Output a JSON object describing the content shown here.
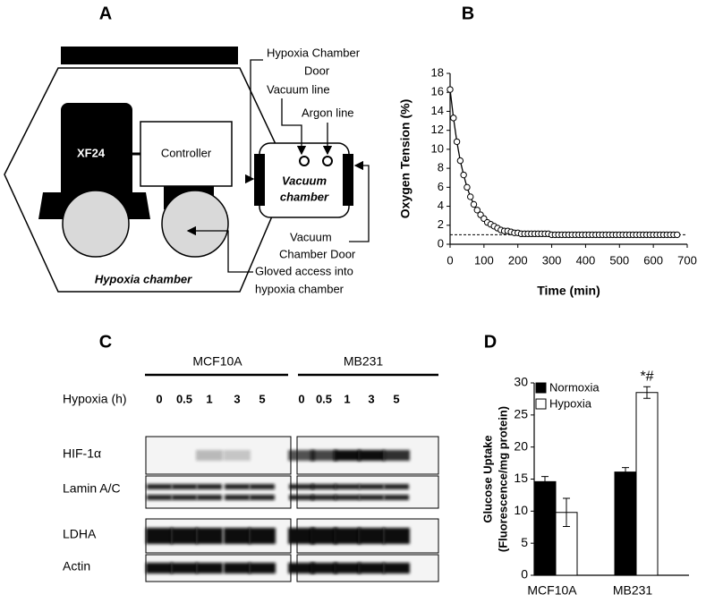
{
  "panel_labels": [
    "A",
    "B",
    "C",
    "D"
  ],
  "diagram": {
    "xf24": "XF24",
    "controller": "Controller",
    "hypoxia_chamber": "Hypoxia  chamber",
    "vacuum_chamber": [
      "Vacuum",
      "chamber"
    ],
    "hypoxia_door": [
      "Hypoxia Chamber",
      "Door"
    ],
    "vacuum_line": "Vacuum line",
    "argon_line": "Argon line",
    "vacuum_door": [
      "Vacuum",
      "Chamber Door"
    ],
    "gloved": [
      "Gloved access into",
      "hypoxia chamber"
    ]
  },
  "blot": {
    "groups": [
      "MCF10A",
      "MB231"
    ],
    "condition_label": "Hypoxia (h)",
    "timepoints": [
      "0",
      "0.5",
      "1",
      "3",
      "5"
    ],
    "rows": [
      "HIF-1α",
      "Lamin A/C",
      "LDHA",
      "Actin"
    ]
  },
  "chart_data": [
    {
      "type": "line",
      "xlabel": "Time (min)",
      "ylabel": "Oxygen Tension (%)",
      "x": [
        0,
        10,
        20,
        30,
        40,
        50,
        60,
        70,
        80,
        90,
        100,
        110,
        120,
        130,
        140,
        150,
        160,
        170,
        180,
        190,
        200,
        210,
        220,
        230,
        240,
        250,
        260,
        270,
        280,
        290,
        300,
        310,
        320,
        330,
        340,
        350,
        360,
        370,
        380,
        390,
        400,
        410,
        420,
        430,
        440,
        450,
        460,
        470,
        480,
        490,
        500,
        510,
        520,
        530,
        540,
        550,
        560,
        570,
        580,
        590,
        600,
        610,
        620,
        630,
        640,
        650,
        660,
        670
      ],
      "values": [
        16.3,
        13.3,
        10.8,
        8.8,
        7.3,
        6.0,
        5.0,
        4.2,
        3.6,
        3.1,
        2.7,
        2.3,
        2.1,
        1.9,
        1.7,
        1.5,
        1.4,
        1.4,
        1.3,
        1.2,
        1.2,
        1.1,
        1.1,
        1.1,
        1.1,
        1.1,
        1.1,
        1.1,
        1.1,
        1.1,
        1.0,
        1.0,
        1.0,
        1.0,
        1.0,
        1.0,
        1.0,
        1.0,
        1.0,
        1.0,
        1.0,
        1.0,
        1.0,
        1.0,
        1.0,
        1.0,
        1.0,
        1.0,
        1.0,
        1.0,
        1.0,
        1.0,
        1.0,
        1.0,
        1.0,
        1.0,
        1.0,
        1.0,
        1.0,
        1.0,
        1.0,
        1.0,
        1.0,
        1.0,
        1.0,
        1.0,
        1.0,
        1.0
      ],
      "color": "#000000",
      "reference_line": 1,
      "xlim": [
        0,
        700
      ],
      "xticks": [
        0,
        100,
        200,
        300,
        400,
        500,
        600,
        700
      ],
      "ylim": [
        0,
        18
      ],
      "yticks": [
        0,
        2,
        4,
        6,
        8,
        10,
        12,
        14,
        16,
        18
      ]
    },
    {
      "type": "bar",
      "ylabel": [
        "Glucose Uptake",
        "(Fluorescence/mg protein)"
      ],
      "categories": [
        "MCF10A",
        "MB231"
      ],
      "series": [
        {
          "name": "Normoxia",
          "color": "#000000",
          "values": [
            14.6,
            16.1
          ],
          "errors": [
            0.8,
            0.7
          ]
        },
        {
          "name": "Hypoxia",
          "color": "#ffffff",
          "values": [
            9.8,
            28.5
          ],
          "errors": [
            2.2,
            0.9
          ]
        }
      ],
      "annotation": "*#",
      "ylim": [
        0,
        30
      ],
      "yticks": [
        0,
        5,
        10,
        15,
        20,
        25,
        30
      ]
    }
  ]
}
